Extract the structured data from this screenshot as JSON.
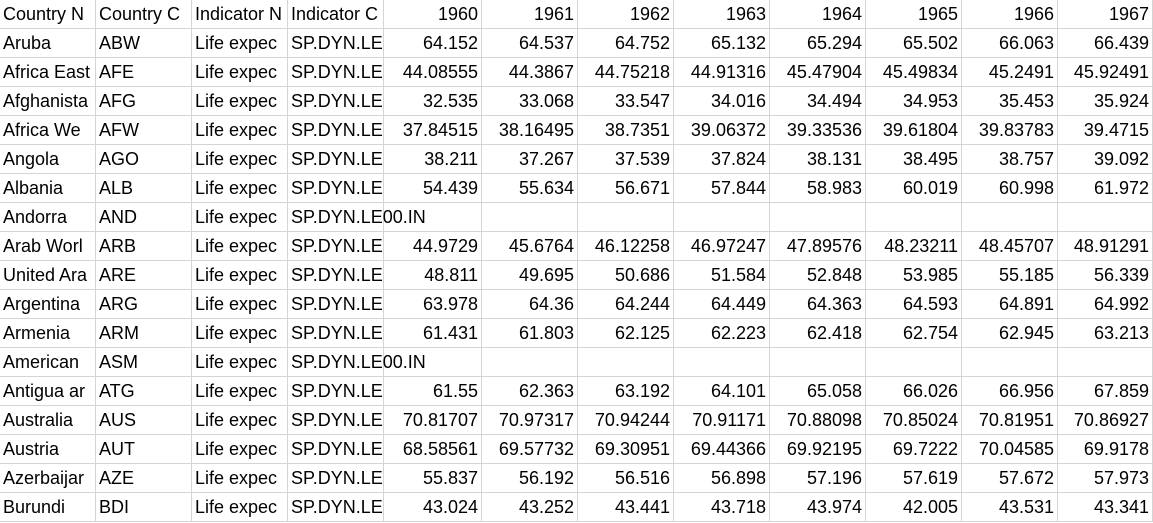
{
  "table": {
    "header": [
      "Country N",
      "Country C",
      "Indicator N",
      "Indicator C",
      1960,
      1961,
      1962,
      1963,
      1964,
      1965,
      1966,
      1967
    ],
    "rows": [
      [
        "Aruba",
        "ABW",
        "Life expec",
        "SP.DYN.LE",
        64.152,
        64.537,
        64.752,
        65.132,
        65.294,
        65.502,
        66.063,
        66.439
      ],
      [
        "Africa East",
        "AFE",
        "Life expec",
        "SP.DYN.LE",
        44.08555,
        44.3867,
        44.75218,
        44.91316,
        45.47904,
        45.49834,
        45.2491,
        45.92491
      ],
      [
        "Afghanista",
        "AFG",
        "Life expec",
        "SP.DYN.LE",
        32.535,
        33.068,
        33.547,
        34.016,
        34.494,
        34.953,
        35.453,
        35.924
      ],
      [
        "Africa We",
        "AFW",
        "Life expec",
        "SP.DYN.LE",
        37.84515,
        38.16495,
        38.7351,
        39.06372,
        39.33536,
        39.61804,
        39.83783,
        39.4715
      ],
      [
        "Angola",
        "AGO",
        "Life expec",
        "SP.DYN.LE",
        38.211,
        37.267,
        37.539,
        37.824,
        38.131,
        38.495,
        38.757,
        39.092
      ],
      [
        "Albania",
        "ALB",
        "Life expec",
        "SP.DYN.LE",
        54.439,
        55.634,
        56.671,
        57.844,
        58.983,
        60.019,
        60.998,
        61.972
      ],
      [
        "Andorra",
        "AND",
        "Life expec",
        "SP.DYN.LE00.IN",
        null,
        null,
        null,
        null,
        null,
        null,
        null,
        null
      ],
      [
        "Arab Worl",
        "ARB",
        "Life expec",
        "SP.DYN.LE",
        44.9729,
        45.6764,
        46.12258,
        46.97247,
        47.89576,
        48.23211,
        48.45707,
        48.91291
      ],
      [
        "United Ara",
        "ARE",
        "Life expec",
        "SP.DYN.LE",
        48.811,
        49.695,
        50.686,
        51.584,
        52.848,
        53.985,
        55.185,
        56.339
      ],
      [
        "Argentina",
        "ARG",
        "Life expec",
        "SP.DYN.LE",
        63.978,
        64.36,
        64.244,
        64.449,
        64.363,
        64.593,
        64.891,
        64.992
      ],
      [
        "Armenia",
        "ARM",
        "Life expec",
        "SP.DYN.LE",
        61.431,
        61.803,
        62.125,
        62.223,
        62.418,
        62.754,
        62.945,
        63.213
      ],
      [
        "American",
        "ASM",
        "Life expec",
        "SP.DYN.LE00.IN",
        null,
        null,
        null,
        null,
        null,
        null,
        null,
        null
      ],
      [
        "Antigua ar",
        "ATG",
        "Life expec",
        "SP.DYN.LE",
        61.55,
        62.363,
        63.192,
        64.101,
        65.058,
        66.026,
        66.956,
        67.859
      ],
      [
        "Australia",
        "AUS",
        "Life expec",
        "SP.DYN.LE",
        70.81707,
        70.97317,
        70.94244,
        70.91171,
        70.88098,
        70.85024,
        70.81951,
        70.86927
      ],
      [
        "Austria",
        "AUT",
        "Life expec",
        "SP.DYN.LE",
        68.58561,
        69.57732,
        69.30951,
        69.44366,
        69.92195,
        69.7222,
        70.04585,
        69.9178
      ],
      [
        "Azerbaijar",
        "AZE",
        "Life expec",
        "SP.DYN.LE",
        55.837,
        56.192,
        56.516,
        56.898,
        57.196,
        57.619,
        57.672,
        57.973
      ],
      [
        "Burundi",
        "BDI",
        "Life expec",
        "SP.DYN.LE",
        43.024,
        43.252,
        43.441,
        43.718,
        43.974,
        42.005,
        43.531,
        43.341
      ]
    ]
  }
}
